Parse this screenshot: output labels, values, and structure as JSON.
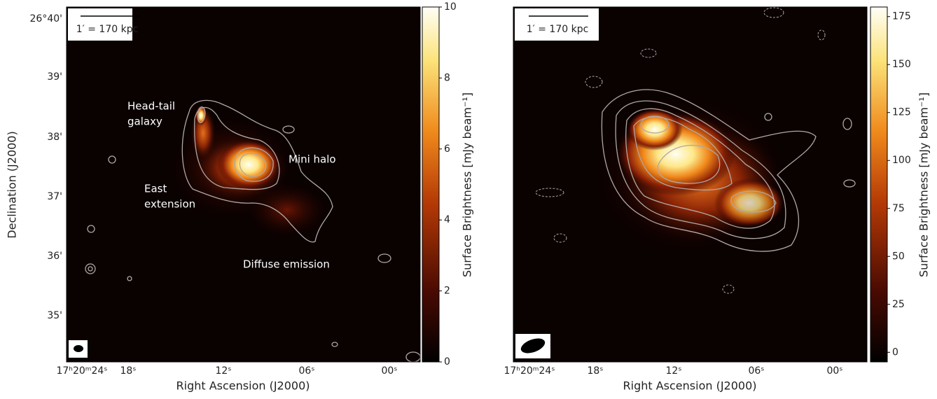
{
  "panels": [
    {
      "scale_bar": "1′ = 170 kpc",
      "xlabel": "Right Ascension (J2000)",
      "ylabel": "Declination (J2000)",
      "xticks": [
        "17ʰ20ᵐ24ˢ",
        "18ˢ",
        "12ˢ",
        "06ˢ",
        "00ˢ"
      ],
      "yticks": [
        "26°40'",
        "39'",
        "38'",
        "37'",
        "36'",
        "35'"
      ],
      "colorbar": {
        "label": "Surface Brightness [mJy beam⁻¹]",
        "lim": [
          0,
          10
        ],
        "ticks": [
          0,
          2,
          4,
          6,
          8,
          10
        ]
      },
      "annotations": [
        [
          "Head-tail",
          "galaxy"
        ],
        [
          "Mini halo"
        ],
        [
          "East",
          "extension"
        ],
        [
          "Diffuse emission"
        ]
      ]
    },
    {
      "scale_bar": "1′ = 170 kpc",
      "xlabel": "Right Ascension (J2000)",
      "xticks": [
        "17ʰ20ᵐ24ˢ",
        "18ˢ",
        "12ˢ",
        "06ˢ",
        "00ˢ"
      ],
      "colorbar": {
        "label": "Surface Brightness [mJy beam⁻¹]",
        "lim": [
          -5,
          180
        ],
        "ticks": [
          0,
          25,
          50,
          75,
          100,
          125,
          150,
          175
        ]
      }
    }
  ]
}
